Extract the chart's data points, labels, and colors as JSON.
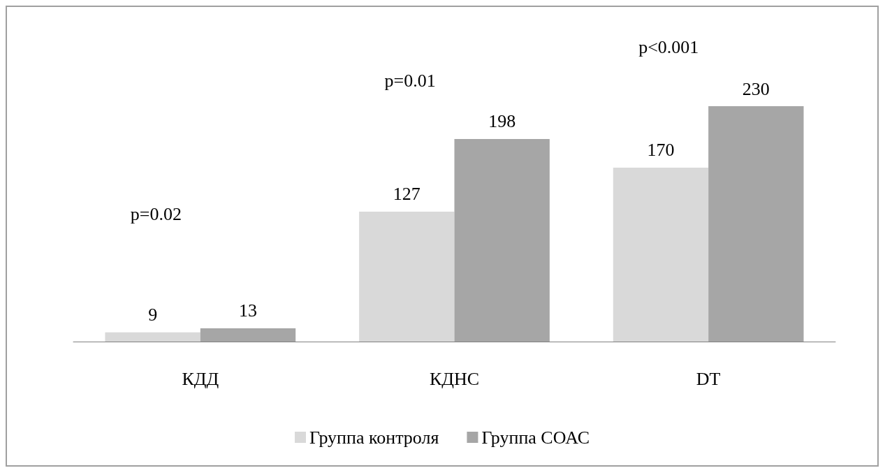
{
  "chart_data": {
    "type": "bar",
    "categories": [
      "КДД",
      "КДНС",
      "DT"
    ],
    "series": [
      {
        "name": "Группа контроля",
        "color": "#d9d9d9",
        "values": [
          9,
          127,
          170
        ]
      },
      {
        "name": "Группа СОАС",
        "color": "#a6a6a6",
        "values": [
          13,
          198,
          230
        ]
      }
    ],
    "data_labels": true,
    "legend": "bottom",
    "annotations": [
      "p=0.02",
      "p=0.01",
      "p<0.001"
    ]
  }
}
